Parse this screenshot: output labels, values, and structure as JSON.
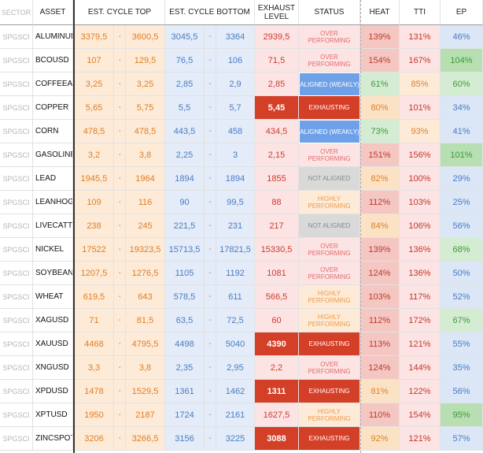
{
  "headers": {
    "sector": "SECTOR",
    "asset": "ASSET",
    "cycle_top": "EST. CYCLE TOP",
    "cycle_bottom": "EST. CYCLE BOTTOM",
    "exhaust": "EXHAUST LEVEL",
    "status": "STATUS",
    "heat": "HEAT",
    "tti": "TTI",
    "ep": "EP"
  },
  "colors": {
    "top_bg": "#fdebd8",
    "bottom_bg": "#e3ecf8",
    "exhaust_bg": "#fde4e4",
    "exhausting": "#d43f28",
    "aligned": "#6fa1e8",
    "not_aligned": "#d9d9d9",
    "heat_red": "#f4c7c3",
    "heat_orange": "#fce2c4",
    "heat_green": "#d4ecd2",
    "ep_green_strong": "#b7dfb1",
    "ep_green": "#d4ecd2",
    "ep_blue": "#dbe6f7"
  },
  "rows": [
    {
      "sector": "SPGSCI",
      "asset": "ALUMINUM",
      "top_lo": "3379,5",
      "top_hi": "3600,5",
      "bot_lo": "3045,5",
      "bot_hi": "3364",
      "exhaust": "2939,5",
      "exhaust_state": "normal",
      "status": "OVER PERFORMING",
      "status_type": "over",
      "heat": "139%",
      "heat_level": "red",
      "tti": "131%",
      "ep": "46%",
      "ep_level": "blue"
    },
    {
      "sector": "SPGSCI",
      "asset": "BCOUSD",
      "top_lo": "107",
      "top_hi": "129,5",
      "bot_lo": "76,5",
      "bot_hi": "106",
      "exhaust": "71,5",
      "exhaust_state": "normal",
      "status": "OVER PERFORMING",
      "status_type": "over",
      "heat": "154%",
      "heat_level": "red",
      "tti": "167%",
      "ep": "104%",
      "ep_level": "green2"
    },
    {
      "sector": "SPGSCI",
      "asset": "COFFEEARABICA",
      "top_lo": "3,25",
      "top_hi": "3,25",
      "bot_lo": "2,85",
      "bot_hi": "2,9",
      "exhaust": "2,85",
      "exhaust_state": "normal",
      "status": "ALIGNED (WEAKLY)",
      "status_type": "aligned",
      "heat": "61%",
      "heat_level": "green",
      "tti": "85%",
      "ep": "60%",
      "ep_level": "green"
    },
    {
      "sector": "SPGSCI",
      "asset": "COPPER",
      "top_lo": "5,65",
      "top_hi": "5,75",
      "bot_lo": "5,5",
      "bot_hi": "5,7",
      "exhaust": "5,45",
      "exhaust_state": "exhausting",
      "status": "EXHAUSTING",
      "status_type": "exhausting",
      "heat": "80%",
      "heat_level": "orange",
      "tti": "101%",
      "ep": "34%",
      "ep_level": "blue"
    },
    {
      "sector": "SPGSCI",
      "asset": "CORN",
      "top_lo": "478,5",
      "top_hi": "478,5",
      "bot_lo": "443,5",
      "bot_hi": "458",
      "exhaust": "434,5",
      "exhaust_state": "normal",
      "status": "ALIGNED (WEAKLY)",
      "status_type": "aligned",
      "heat": "73%",
      "heat_level": "green",
      "tti": "93%",
      "ep": "41%",
      "ep_level": "blue"
    },
    {
      "sector": "SPGSCI",
      "asset": "GASOLINE",
      "top_lo": "3,2",
      "top_hi": "3,8",
      "bot_lo": "2,25",
      "bot_hi": "3",
      "exhaust": "2,15",
      "exhaust_state": "normal",
      "status": "OVER PERFORMING",
      "status_type": "over",
      "heat": "151%",
      "heat_level": "red",
      "tti": "156%",
      "ep": "101%",
      "ep_level": "green2"
    },
    {
      "sector": "SPGSCI",
      "asset": "LEAD",
      "top_lo": "1945,5",
      "top_hi": "1964",
      "bot_lo": "1894",
      "bot_hi": "1894",
      "exhaust": "1855",
      "exhaust_state": "normal",
      "status": "NOT ALIGNED",
      "status_type": "notaligned",
      "heat": "82%",
      "heat_level": "orange",
      "tti": "100%",
      "ep": "29%",
      "ep_level": "blue"
    },
    {
      "sector": "SPGSCI",
      "asset": "LEANHOGS",
      "top_lo": "109",
      "top_hi": "116",
      "bot_lo": "90",
      "bot_hi": "99,5",
      "exhaust": "88",
      "exhaust_state": "normal",
      "status": "HIGHLY PERFORMING",
      "status_type": "high",
      "heat": "112%",
      "heat_level": "red",
      "tti": "103%",
      "ep": "25%",
      "ep_level": "blue"
    },
    {
      "sector": "SPGSCI",
      "asset": "LIVECATTLE",
      "top_lo": "238",
      "top_hi": "245",
      "bot_lo": "221,5",
      "bot_hi": "231",
      "exhaust": "217",
      "exhaust_state": "normal",
      "status": "NOT ALIGNED",
      "status_type": "notaligned",
      "heat": "84%",
      "heat_level": "orange",
      "tti": "106%",
      "ep": "56%",
      "ep_level": "blue"
    },
    {
      "sector": "SPGSCI",
      "asset": "NICKEL",
      "top_lo": "17522",
      "top_hi": "19323,5",
      "bot_lo": "15713,5",
      "bot_hi": "17821,5",
      "exhaust": "15330,5",
      "exhaust_state": "normal",
      "status": "OVER PERFORMING",
      "status_type": "over",
      "heat": "139%",
      "heat_level": "red",
      "tti": "136%",
      "ep": "68%",
      "ep_level": "green"
    },
    {
      "sector": "SPGSCI",
      "asset": "SOYBEAN",
      "top_lo": "1207,5",
      "top_hi": "1276,5",
      "bot_lo": "1105",
      "bot_hi": "1192",
      "exhaust": "1081",
      "exhaust_state": "normal",
      "status": "OVER PERFORMING",
      "status_type": "over",
      "heat": "124%",
      "heat_level": "red",
      "tti": "136%",
      "ep": "50%",
      "ep_level": "blue"
    },
    {
      "sector": "SPGSCI",
      "asset": "WHEAT",
      "top_lo": "619,5",
      "top_hi": "643",
      "bot_lo": "578,5",
      "bot_hi": "611",
      "exhaust": "566,5",
      "exhaust_state": "normal",
      "status": "HIGHLY PERFORMING",
      "status_type": "high",
      "heat": "103%",
      "heat_level": "red",
      "tti": "117%",
      "ep": "52%",
      "ep_level": "blue"
    },
    {
      "sector": "SPGSCI",
      "asset": "XAGUSD",
      "top_lo": "71",
      "top_hi": "81,5",
      "bot_lo": "63,5",
      "bot_hi": "72,5",
      "exhaust": "60",
      "exhaust_state": "normal",
      "status": "HIGHLY PERFORMING",
      "status_type": "high",
      "heat": "112%",
      "heat_level": "red",
      "tti": "172%",
      "ep": "67%",
      "ep_level": "green"
    },
    {
      "sector": "SPGSCI",
      "asset": "XAUUSD",
      "top_lo": "4468",
      "top_hi": "4795,5",
      "bot_lo": "4498",
      "bot_hi": "5040",
      "exhaust": "4390",
      "exhaust_state": "exhausting",
      "status": "EXHAUSTING",
      "status_type": "exhausting",
      "heat": "113%",
      "heat_level": "red",
      "tti": "121%",
      "ep": "55%",
      "ep_level": "blue"
    },
    {
      "sector": "SPGSCI",
      "asset": "XNGUSD",
      "top_lo": "3,3",
      "top_hi": "3,8",
      "bot_lo": "2,35",
      "bot_hi": "2,95",
      "exhaust": "2,2",
      "exhaust_state": "normal",
      "status": "OVER PERFORMING",
      "status_type": "over",
      "heat": "124%",
      "heat_level": "red",
      "tti": "144%",
      "ep": "35%",
      "ep_level": "blue"
    },
    {
      "sector": "SPGSCI",
      "asset": "XPDUSD",
      "top_lo": "1478",
      "top_hi": "1529,5",
      "bot_lo": "1361",
      "bot_hi": "1462",
      "exhaust": "1311",
      "exhaust_state": "exhausting",
      "status": "EXHAUSTING",
      "status_type": "exhausting",
      "heat": "81%",
      "heat_level": "orange",
      "tti": "122%",
      "ep": "56%",
      "ep_level": "blue"
    },
    {
      "sector": "SPGSCI",
      "asset": "XPTUSD",
      "top_lo": "1950",
      "top_hi": "2187",
      "bot_lo": "1724",
      "bot_hi": "2161",
      "exhaust": "1627,5",
      "exhaust_state": "normal",
      "status": "HIGHLY PERFORMING",
      "status_type": "high",
      "heat": "110%",
      "heat_level": "red",
      "tti": "154%",
      "ep": "95%",
      "ep_level": "green2"
    },
    {
      "sector": "SPGSCI",
      "asset": "ZINCSPOT",
      "top_lo": "3206",
      "top_hi": "3266,5",
      "bot_lo": "3156",
      "bot_hi": "3225",
      "exhaust": "3088",
      "exhaust_state": "exhausting",
      "status": "EXHAUSTING",
      "status_type": "exhausting",
      "heat": "92%",
      "heat_level": "orange",
      "tti": "121%",
      "ep": "57%",
      "ep_level": "blue"
    }
  ]
}
